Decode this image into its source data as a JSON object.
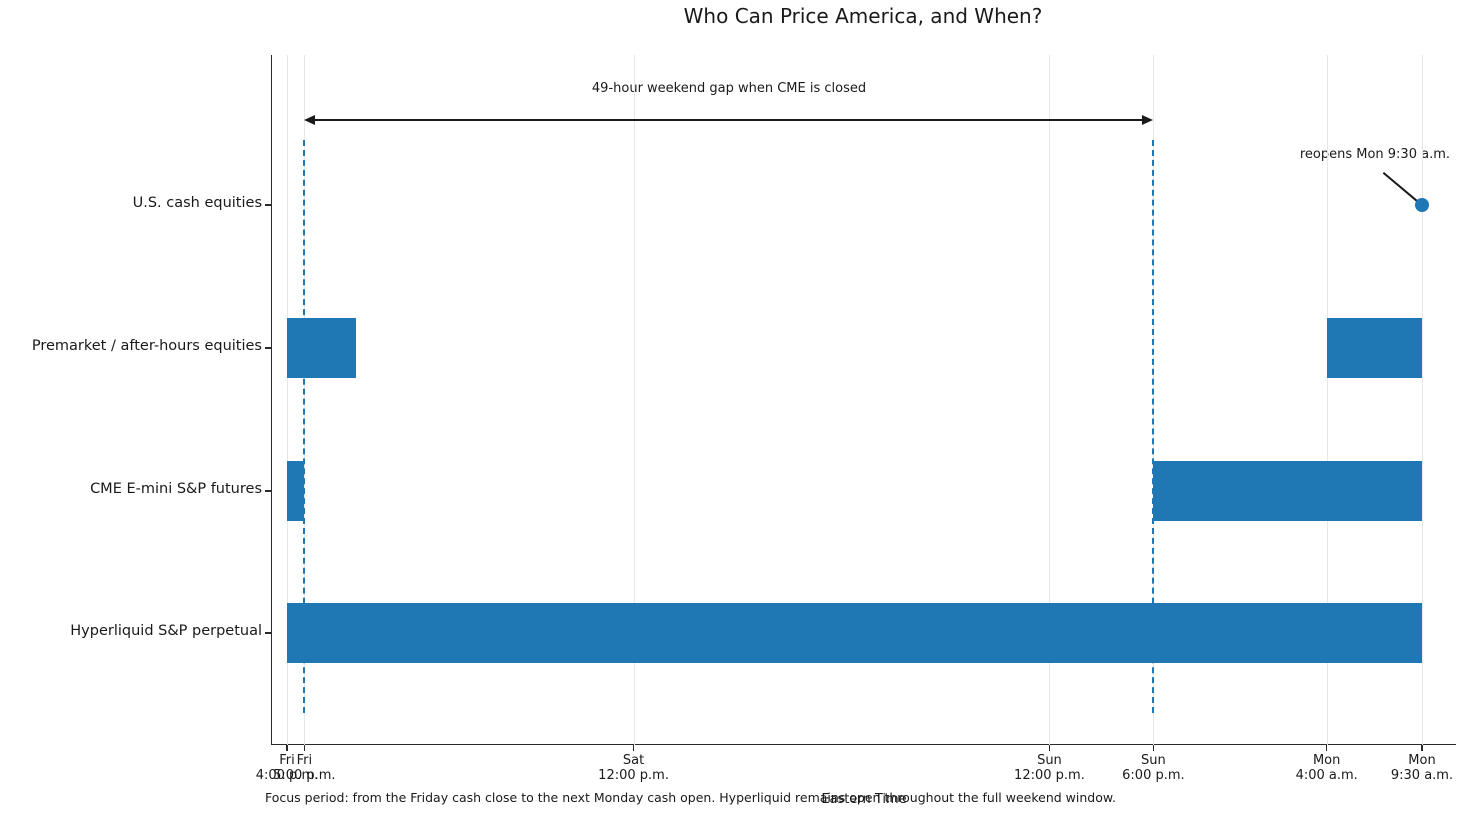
{
  "chart_data": {
    "type": "bar",
    "subtype": "horizontal_interval_timeline",
    "title": "Who Can Price America, and When?",
    "xlabel": "Eastern Time",
    "caption": "Focus period: from the Friday cash close to the next Monday cash open. Hyperliquid remains open throughout the full weekend window.",
    "x_unit": "hours after Fri 4:00 p.m. ET",
    "xlim_hours": [
      0,
      65.5
    ],
    "grid": true,
    "legend": "none",
    "bar_color": "#1f77b4",
    "dashed_line_color": "#1f77b4",
    "grid_color": "#e7e7e7",
    "text_color": "#1a1a1a",
    "x_ticks": [
      {
        "hour": 0,
        "day": "Fri",
        "time": "4:00 p.m."
      },
      {
        "hour": 1,
        "day": "Fri",
        "time": "5:00 p.m."
      },
      {
        "hour": 20,
        "day": "Sat",
        "time": "12:00 p.m."
      },
      {
        "hour": 44,
        "day": "Sun",
        "time": "12:00 p.m."
      },
      {
        "hour": 50,
        "day": "Sun",
        "time": "6:00 p.m."
      },
      {
        "hour": 60,
        "day": "Mon",
        "time": "4:00 a.m."
      },
      {
        "hour": 65.5,
        "day": "Mon",
        "time": "9:30 a.m."
      }
    ],
    "rows": [
      {
        "label": "U.S. cash equities",
        "intervals": []
      },
      {
        "label": "Premarket / after-hours equities",
        "intervals": [
          [
            0,
            4
          ],
          [
            60,
            65.5
          ]
        ]
      },
      {
        "label": "CME E-mini S&P futures",
        "intervals": [
          [
            0,
            1
          ],
          [
            50,
            65.5
          ]
        ]
      },
      {
        "label": "Hyperliquid S&P perpetual",
        "intervals": [
          [
            0,
            65.5
          ]
        ]
      }
    ],
    "marker": {
      "row": 0,
      "hour": 65.5,
      "label": "reopens Mon 9:30 a.m."
    },
    "gap_annotation": {
      "text": "49-hour weekend gap when CME is closed",
      "from_hour": 1,
      "to_hour": 50
    },
    "dashed_lines_hours": [
      1,
      50
    ]
  }
}
